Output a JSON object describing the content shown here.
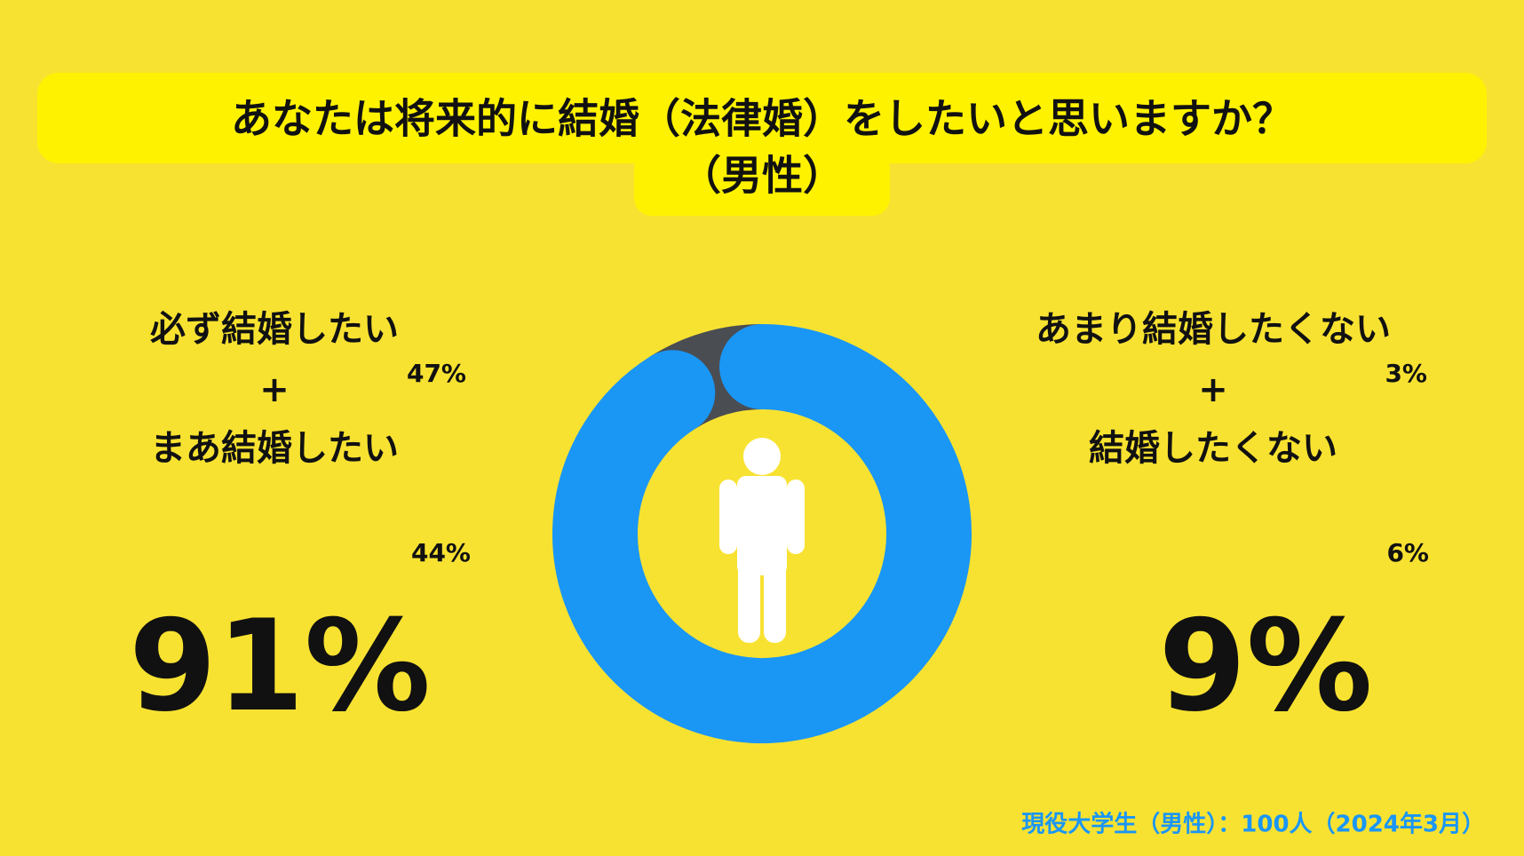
{
  "chart_data": {
    "type": "donut",
    "title": "あなたは将来的に結婚（法律婚）をしたいと思いますか？",
    "subtitle": "（男性）",
    "joiner": "+",
    "categories": [
      "必ず結婚したい",
      "まあ結婚したい",
      "あまり結婚したくない",
      "結婚したくない"
    ],
    "values": [
      47,
      44,
      3,
      6
    ],
    "value_labels": [
      "47%",
      "44%",
      "3%",
      "6%"
    ],
    "groups": [
      {
        "total": 91,
        "total_label": "91%",
        "color": "#1a96f5"
      },
      {
        "total": 9,
        "total_label": "9%",
        "color": "#4a4d52"
      }
    ],
    "note": "現役大学生（男性）：100人（2024年3月）"
  }
}
